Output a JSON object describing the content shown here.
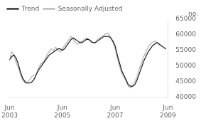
{
  "chart_data": {
    "type": "line",
    "ylabel": "no.",
    "x": [
      0,
      1,
      2,
      3,
      4,
      5,
      6,
      7,
      8,
      9,
      10,
      11,
      12,
      13,
      14,
      15,
      16,
      17,
      18,
      19,
      20,
      21,
      22,
      23,
      24,
      25,
      26,
      27,
      28,
      29,
      30,
      31,
      32,
      33,
      34,
      35,
      36,
      37,
      38,
      39,
      40,
      41,
      42,
      43,
      44,
      45,
      46,
      47,
      48,
      49,
      50,
      51,
      52,
      53,
      54,
      55,
      56,
      57,
      58,
      59,
      60,
      61,
      62,
      63,
      64,
      65,
      66,
      67,
      68,
      69,
      70,
      71
    ],
    "xlim": [
      0,
      72
    ],
    "xticks": [
      {
        "value": 0,
        "label": "Jun\n2003"
      },
      {
        "value": 24,
        "label": "Jun\n2005"
      },
      {
        "value": 48,
        "label": "Jun\n2007"
      },
      {
        "value": 72,
        "label": "Jun\n2009"
      }
    ],
    "ylim": [
      40000,
      65000
    ],
    "yticks": [
      40000,
      45000,
      50000,
      55000,
      60000,
      65000
    ],
    "grid": false,
    "legend": "upper left",
    "series": [
      {
        "name": "Trend",
        "color": "#1a1a1a",
        "values": [
          52000,
          53000,
          53500,
          52500,
          50500,
          48000,
          46000,
          45000,
          44500,
          44500,
          44800,
          45500,
          47000,
          48500,
          49500,
          50500,
          51500,
          52500,
          53500,
          54000,
          54500,
          55000,
          55500,
          55500,
          55000,
          55500,
          56500,
          57500,
          58500,
          59000,
          58500,
          58000,
          57500,
          57500,
          58000,
          58500,
          58500,
          58000,
          57500,
          57500,
          58000,
          58500,
          59000,
          59500,
          59500,
          59500,
          59000,
          58000,
          56500,
          53500,
          51000,
          48500,
          47000,
          45500,
          44000,
          43500,
          43500,
          44000,
          45500,
          47500,
          49500,
          51500,
          53000,
          54500,
          55500,
          56500,
          57000,
          57500,
          57000,
          56500,
          56000,
          55500
        ]
      },
      {
        "name": "Seasonally Adjusted",
        "color": "#b0b0b0",
        "values": [
          52000,
          54500,
          53500,
          51000,
          49500,
          47000,
          45500,
          44500,
          44500,
          45500,
          46500,
          47000,
          47000,
          49000,
          50500,
          51000,
          52000,
          53500,
          54500,
          55500,
          55000,
          56000,
          55000,
          54500,
          55500,
          56500,
          57500,
          58500,
          59500,
          58500,
          57500,
          57000,
          57500,
          58000,
          58500,
          59000,
          58500,
          57500,
          57500,
          57500,
          58500,
          59000,
          59500,
          60000,
          60500,
          60500,
          59000,
          57500,
          55500,
          52500,
          50000,
          47500,
          46500,
          45000,
          43500,
          43000,
          43500,
          45000,
          46500,
          49000,
          51000,
          53000,
          54500,
          56000,
          57000,
          57500,
          58000,
          57500,
          57000,
          56500,
          56000,
          55500
        ]
      }
    ]
  }
}
